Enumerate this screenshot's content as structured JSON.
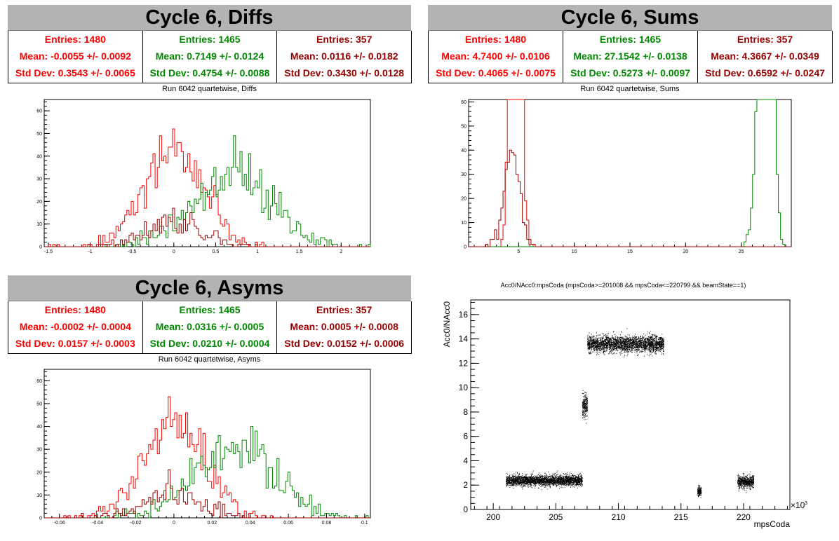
{
  "panels": {
    "diffs": {
      "title": "Cycle 6, Diffs",
      "run_title": "Run 6042 quartetwise, Diffs",
      "stats": [
        {
          "entries": "Entries: 1480",
          "mean": "Mean: -0.0055 +/- 0.0092",
          "std": "Std Dev: 0.3543 +/- 0.0065",
          "color": "#ff0000"
        },
        {
          "entries": "Entries: 1465",
          "mean": "Mean: 0.7149 +/- 0.0124",
          "std": "Std Dev: 0.4754 +/- 0.0088",
          "color": "#008800"
        },
        {
          "entries": "Entries: 357",
          "mean": "Mean: 0.0116 +/- 0.0182",
          "std": "Std Dev: 0.3430 +/- 0.0128",
          "color": "#990000"
        }
      ]
    },
    "sums": {
      "title": "Cycle 6, Sums",
      "run_title": "Run 6042 quartetwise, Sums",
      "stats": [
        {
          "entries": "Entries: 1480",
          "mean": "Mean: 4.7400 +/- 0.0106",
          "std": "Std Dev: 0.4065 +/- 0.0075",
          "color": "#ff0000"
        },
        {
          "entries": "Entries: 1465",
          "mean": "Mean: 27.1542 +/- 0.0138",
          "std": "Std Dev: 0.5273 +/- 0.0097",
          "color": "#008800"
        },
        {
          "entries": "Entries: 357",
          "mean": "Mean: 4.3667 +/- 0.0349",
          "std": "Std Dev: 0.6592 +/- 0.0247",
          "color": "#990000"
        }
      ]
    },
    "asyms": {
      "title": "Cycle 6, Asyms",
      "run_title": "Run 6042 quartetwise, Asyms",
      "stats": [
        {
          "entries": "Entries: 1480",
          "mean": "Mean: -0.0002 +/- 0.0004",
          "std": "Std Dev: 0.0157 +/- 0.0003",
          "color": "#ff0000"
        },
        {
          "entries": "Entries: 1465",
          "mean": "Mean: 0.0316 +/- 0.0005",
          "std": "Std Dev: 0.0210 +/- 0.0004",
          "color": "#008800"
        },
        {
          "entries": "Entries: 357",
          "mean": "Mean: 0.0005 +/- 0.0008",
          "std": "Std Dev: 0.0152 +/- 0.0006",
          "color": "#990000"
        }
      ]
    }
  },
  "chart_data": [
    {
      "id": "diffs",
      "type": "histogram",
      "xlim": [
        -1.55,
        2.35
      ],
      "ylim": [
        0,
        65
      ],
      "xticks": [
        -1.5,
        -1,
        -0.5,
        0,
        0.5,
        1,
        1.5,
        2
      ],
      "xtick_labels": [
        "-1.5",
        "-1",
        "-0.5",
        "0",
        "0.5",
        "1",
        "1.5",
        "2"
      ],
      "yticks": [
        0,
        10,
        20,
        30,
        40,
        50,
        60
      ],
      "series": [
        {
          "mean": -0.0055,
          "std": 0.3543,
          "entries": 1480,
          "color": "#ff0000"
        },
        {
          "mean": 0.7149,
          "std": 0.4754,
          "entries": 1465,
          "color": "#008800"
        },
        {
          "mean": 0.0116,
          "std": 0.343,
          "entries": 357,
          "color": "#990000"
        }
      ]
    },
    {
      "id": "sums",
      "type": "histogram",
      "xlim": [
        0.5,
        29.5
      ],
      "ylim": [
        0,
        61
      ],
      "xticks": [
        5,
        10,
        15,
        20,
        25
      ],
      "xtick_labels": [
        "5",
        "10",
        "15",
        "20",
        "25"
      ],
      "yticks": [
        0,
        10,
        20,
        30,
        40,
        50,
        60
      ],
      "series": [
        {
          "mean": 4.74,
          "std": 0.4065,
          "entries": 1480,
          "color": "#ff0000"
        },
        {
          "mean": 27.1542,
          "std": 0.5273,
          "entries": 1465,
          "color": "#008800"
        },
        {
          "mean": 4.3667,
          "std": 0.6592,
          "entries": 357,
          "color": "#990000"
        }
      ]
    },
    {
      "id": "asyms",
      "type": "histogram",
      "xlim": [
        -0.068,
        0.103
      ],
      "ylim": [
        0,
        65
      ],
      "xticks": [
        -0.06,
        -0.04,
        -0.02,
        0,
        0.02,
        0.04,
        0.06,
        0.08,
        0.1
      ],
      "xtick_labels": [
        "-0.06",
        "-0.04",
        "-0.02",
        "0",
        "0.02",
        "0.04",
        "0.06",
        "0.08",
        "0.1"
      ],
      "yticks": [
        0,
        10,
        20,
        30,
        40,
        50,
        60
      ],
      "series": [
        {
          "mean": -0.0002,
          "std": 0.0157,
          "entries": 1480,
          "color": "#ff0000"
        },
        {
          "mean": 0.0316,
          "std": 0.021,
          "entries": 1465,
          "color": "#008800"
        },
        {
          "mean": 0.0005,
          "std": 0.0152,
          "entries": 357,
          "color": "#990000"
        }
      ]
    },
    {
      "id": "scatter",
      "type": "scatter",
      "title": "Acc0/NAcc0:mpsCoda (mpsCoda>=201008 && mpsCoda<=220799 && beamState==1)",
      "xlabel": "mpsCoda",
      "ylabel": "Acc0/NAcc0",
      "x_multiplier": "×10",
      "x_multiplier_exp": "3",
      "xlim": [
        198.2,
        223.7
      ],
      "ylim": [
        0,
        17.2
      ],
      "xticks": [
        200,
        205,
        210,
        215,
        220
      ],
      "xtick_labels": [
        "200",
        "205",
        "210",
        "215",
        "220"
      ],
      "yticks": [
        0,
        2,
        4,
        6,
        8,
        10,
        12,
        14,
        16
      ],
      "ytick_labels": [
        "0",
        "2",
        "4",
        "6",
        "8",
        "10",
        "12",
        "14",
        "16"
      ],
      "color": "#000000",
      "clusters": [
        {
          "x": [
            201.0,
            207.1
          ],
          "y_center": 2.4,
          "y_spread": 0.35
        },
        {
          "x": [
            207.1,
            207.5
          ],
          "y_center": 8.6,
          "y_spread": 0.8
        },
        {
          "x": [
            207.5,
            213.6
          ],
          "y_center": 13.6,
          "y_spread": 0.55
        },
        {
          "x": [
            216.3,
            216.6
          ],
          "y_center": 1.5,
          "y_spread": 0.3
        },
        {
          "x": [
            219.5,
            220.8
          ],
          "y_center": 2.3,
          "y_spread": 0.4
        }
      ]
    }
  ]
}
